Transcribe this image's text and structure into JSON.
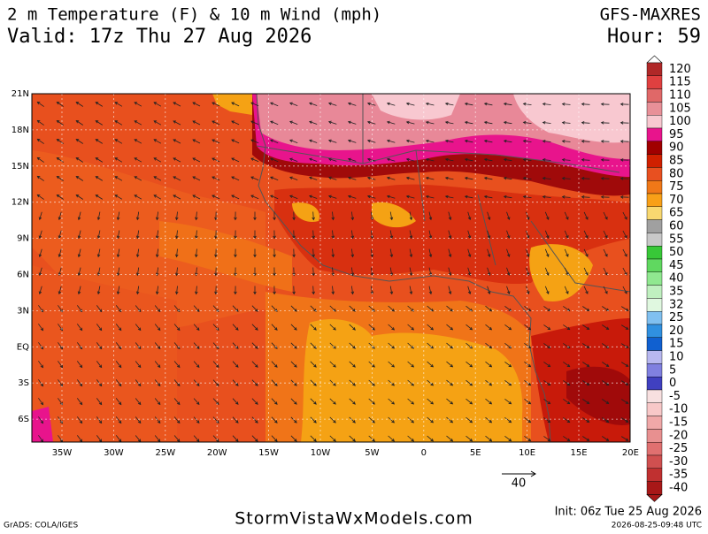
{
  "header": {
    "title": "2 m Temperature (F) & 10 m Wind (mph)",
    "valid": "Valid: 17z Thu 27 Aug 2026",
    "model": "GFS-MAXRES",
    "hour": "Hour: 59"
  },
  "map": {
    "lat_labels": [
      "21N",
      "18N",
      "15N",
      "12N",
      "9N",
      "6N",
      "3N",
      "EQ",
      "3S",
      "6S"
    ],
    "lon_labels": [
      "35W",
      "30W",
      "25W",
      "20W",
      "15W",
      "10W",
      "5W",
      "0",
      "5E",
      "10E",
      "15E",
      "20E"
    ],
    "wind_reference": "40"
  },
  "colorbar": {
    "ticks": [
      {
        "value": 120,
        "color": "#b02828"
      },
      {
        "value": 115,
        "color": "#e04040"
      },
      {
        "value": 110,
        "color": "#e06868"
      },
      {
        "value": 105,
        "color": "#e89098"
      },
      {
        "value": 100,
        "color": "#f8c8d0"
      },
      {
        "value": 95,
        "color": "#e8148c"
      },
      {
        "value": 90,
        "color": "#a00000"
      },
      {
        "value": 85,
        "color": "#d02000"
      },
      {
        "value": 80,
        "color": "#e85020"
      },
      {
        "value": 75,
        "color": "#f07818"
      },
      {
        "value": 70,
        "color": "#f8a018"
      },
      {
        "value": 65,
        "color": "#f8d870"
      },
      {
        "value": 60,
        "color": "#a0a0a0"
      },
      {
        "value": 55,
        "color": "#c8c8c8"
      },
      {
        "value": 50,
        "color": "#38c838"
      },
      {
        "value": 45,
        "color": "#60d860"
      },
      {
        "value": 40,
        "color": "#90e890"
      },
      {
        "value": 35,
        "color": "#c0f0c0"
      },
      {
        "value": 32,
        "color": "#e0f8e0"
      },
      {
        "value": 25,
        "color": "#80c0f0"
      },
      {
        "value": 20,
        "color": "#3090e0"
      },
      {
        "value": 15,
        "color": "#1060d0"
      },
      {
        "value": 10,
        "color": "#b8b8f0"
      },
      {
        "value": 5,
        "color": "#8080e0"
      },
      {
        "value": 0,
        "color": "#4040c0"
      },
      {
        "value": -5,
        "color": "#f8e0e0"
      },
      {
        "value": -10,
        "color": "#f8c8c8"
      },
      {
        "value": -15,
        "color": "#f0a8a8"
      },
      {
        "value": -20,
        "color": "#e89090"
      },
      {
        "value": -25,
        "color": "#e07070"
      },
      {
        "value": -30,
        "color": "#d05050"
      },
      {
        "value": -35,
        "color": "#c03030"
      },
      {
        "value": -40,
        "color": "#a81818"
      }
    ]
  },
  "footer": {
    "grads": "GrADS: COLA/IGES",
    "site": "StormVistaWxModels.com",
    "init": "Init: 06z Tue 25 Aug 2026",
    "stamp": "2026-08-25-09:48 UTC"
  }
}
